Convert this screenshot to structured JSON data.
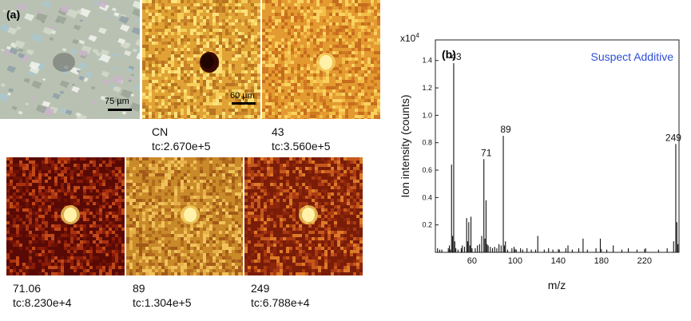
{
  "panel_a": {
    "label": "(a)",
    "optical": {
      "scale_label": "75 µm"
    },
    "images": [
      {
        "id": "cn",
        "line1": "CN",
        "line2": "tc:2.670e+5",
        "feature": "dark",
        "scale_label": "60 µm"
      },
      {
        "id": "m43",
        "line1": "43",
        "line2": "tc:3.560e+5",
        "feature": "bright"
      },
      {
        "id": "m71",
        "line1": "71.06",
        "line2": "tc:8.230e+4",
        "feature": "bright"
      },
      {
        "id": "m89",
        "line1": "89",
        "line2": "tc:1.304e+5",
        "feature": "bright"
      },
      {
        "id": "m249",
        "line1": "249",
        "line2": "tc:6.788e+4",
        "feature": "bright"
      }
    ]
  },
  "panel_b": {
    "label": "(b)",
    "title": "Suspect Additive",
    "title_color": "#2f4fd6",
    "chart_data": {
      "type": "bar",
      "xlabel": "m/z",
      "ylabel": "Ion intensity (counts)",
      "y_multiplier": "x10",
      "y_multiplier_exp": "4",
      "xlim": [
        26,
        252
      ],
      "ylim": [
        0,
        1.55
      ],
      "xticks": [
        60,
        100,
        140,
        180,
        220
      ],
      "yticks": [
        0.2,
        0.4,
        0.6,
        0.8,
        1.0,
        1.2,
        1.4
      ],
      "peaks": [
        {
          "x": 28,
          "y": 0.03
        },
        {
          "x": 30,
          "y": 0.02
        },
        {
          "x": 32,
          "y": 0.02
        },
        {
          "x": 38,
          "y": 0.03
        },
        {
          "x": 39,
          "y": 0.05
        },
        {
          "x": 40,
          "y": 0.02
        },
        {
          "x": 41,
          "y": 0.64
        },
        {
          "x": 42,
          "y": 0.12
        },
        {
          "x": 43,
          "y": 1.38,
          "label": "43"
        },
        {
          "x": 44,
          "y": 0.08
        },
        {
          "x": 45,
          "y": 0.03
        },
        {
          "x": 47,
          "y": 0.02
        },
        {
          "x": 50,
          "y": 0.03
        },
        {
          "x": 51,
          "y": 0.05
        },
        {
          "x": 53,
          "y": 0.04
        },
        {
          "x": 55,
          "y": 0.25
        },
        {
          "x": 56,
          "y": 0.08
        },
        {
          "x": 57,
          "y": 0.22
        },
        {
          "x": 58,
          "y": 0.05
        },
        {
          "x": 59,
          "y": 0.26
        },
        {
          "x": 60,
          "y": 0.03
        },
        {
          "x": 63,
          "y": 0.03
        },
        {
          "x": 65,
          "y": 0.05
        },
        {
          "x": 67,
          "y": 0.06
        },
        {
          "x": 69,
          "y": 0.12
        },
        {
          "x": 71,
          "y": 0.68,
          "label": "71"
        },
        {
          "x": 72,
          "y": 0.1
        },
        {
          "x": 73,
          "y": 0.38
        },
        {
          "x": 74,
          "y": 0.06
        },
        {
          "x": 75,
          "y": 0.05
        },
        {
          "x": 77,
          "y": 0.04
        },
        {
          "x": 79,
          "y": 0.03
        },
        {
          "x": 81,
          "y": 0.04
        },
        {
          "x": 83,
          "y": 0.03
        },
        {
          "x": 85,
          "y": 0.06
        },
        {
          "x": 87,
          "y": 0.05
        },
        {
          "x": 89,
          "y": 0.85,
          "label": "89"
        },
        {
          "x": 90,
          "y": 0.05
        },
        {
          "x": 91,
          "y": 0.08
        },
        {
          "x": 93,
          "y": 0.02
        },
        {
          "x": 97,
          "y": 0.03
        },
        {
          "x": 99,
          "y": 0.04
        },
        {
          "x": 101,
          "y": 0.02
        },
        {
          "x": 105,
          "y": 0.03
        },
        {
          "x": 107,
          "y": 0.02
        },
        {
          "x": 111,
          "y": 0.03
        },
        {
          "x": 115,
          "y": 0.02
        },
        {
          "x": 119,
          "y": 0.02
        },
        {
          "x": 121,
          "y": 0.12
        },
        {
          "x": 127,
          "y": 0.02
        },
        {
          "x": 131,
          "y": 0.03
        },
        {
          "x": 135,
          "y": 0.02
        },
        {
          "x": 141,
          "y": 0.02
        },
        {
          "x": 147,
          "y": 0.03
        },
        {
          "x": 149,
          "y": 0.05
        },
        {
          "x": 153,
          "y": 0.02
        },
        {
          "x": 159,
          "y": 0.03
        },
        {
          "x": 163,
          "y": 0.1
        },
        {
          "x": 167,
          "y": 0.02
        },
        {
          "x": 175,
          "y": 0.03
        },
        {
          "x": 179,
          "y": 0.1
        },
        {
          "x": 185,
          "y": 0.02
        },
        {
          "x": 191,
          "y": 0.05
        },
        {
          "x": 199,
          "y": 0.02
        },
        {
          "x": 205,
          "y": 0.03
        },
        {
          "x": 213,
          "y": 0.02
        },
        {
          "x": 221,
          "y": 0.03
        },
        {
          "x": 233,
          "y": 0.02
        },
        {
          "x": 241,
          "y": 0.03
        },
        {
          "x": 247,
          "y": 0.08
        },
        {
          "x": 249,
          "y": 0.79,
          "label": "249"
        },
        {
          "x": 250,
          "y": 0.22
        },
        {
          "x": 251,
          "y": 0.06
        }
      ]
    }
  }
}
